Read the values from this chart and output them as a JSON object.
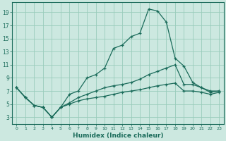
{
  "xlabel": "Humidex (Indice chaleur)",
  "bg_color": "#cce8e0",
  "grid_color": "#99ccbb",
  "line_color": "#1a6b5a",
  "xlim": [
    -0.5,
    23.5
  ],
  "ylim": [
    2.0,
    20.5
  ],
  "yticks": [
    3,
    5,
    7,
    9,
    11,
    13,
    15,
    17,
    19
  ],
  "xticks": [
    0,
    1,
    2,
    3,
    4,
    5,
    6,
    7,
    8,
    9,
    10,
    11,
    12,
    13,
    14,
    15,
    16,
    17,
    18,
    19,
    20,
    21,
    22,
    23
  ],
  "line1_x": [
    0,
    1,
    2,
    3,
    4,
    5,
    6,
    7,
    8,
    9,
    10,
    11,
    12,
    13,
    14,
    15,
    16,
    17,
    18,
    19,
    20,
    21,
    22,
    23
  ],
  "line1_y": [
    7.5,
    6.0,
    4.8,
    4.5,
    3.0,
    4.5,
    6.5,
    7.0,
    9.0,
    9.5,
    10.5,
    13.5,
    14.0,
    15.3,
    15.8,
    19.5,
    19.2,
    17.5,
    12.0,
    10.8,
    8.3,
    7.5,
    7.0,
    7.0
  ],
  "line2_x": [
    0,
    1,
    2,
    3,
    4,
    5,
    6,
    7,
    8,
    9,
    10,
    11,
    12,
    13,
    14,
    15,
    16,
    17,
    18,
    19,
    20,
    21,
    22,
    23
  ],
  "line2_y": [
    7.5,
    6.0,
    4.8,
    4.5,
    3.0,
    4.5,
    5.2,
    6.0,
    6.5,
    7.0,
    7.5,
    7.8,
    8.0,
    8.3,
    8.8,
    9.5,
    10.0,
    10.5,
    11.0,
    8.0,
    8.0,
    7.5,
    6.8,
    7.0
  ],
  "line3_x": [
    0,
    1,
    2,
    3,
    4,
    5,
    6,
    7,
    8,
    9,
    10,
    11,
    12,
    13,
    14,
    15,
    16,
    17,
    18,
    19,
    20,
    21,
    22,
    23
  ],
  "line3_y": [
    7.5,
    6.0,
    4.8,
    4.5,
    3.0,
    4.5,
    5.0,
    5.5,
    5.8,
    6.0,
    6.2,
    6.5,
    6.8,
    7.0,
    7.2,
    7.5,
    7.8,
    8.0,
    8.2,
    7.0,
    7.0,
    6.8,
    6.5,
    6.8
  ]
}
